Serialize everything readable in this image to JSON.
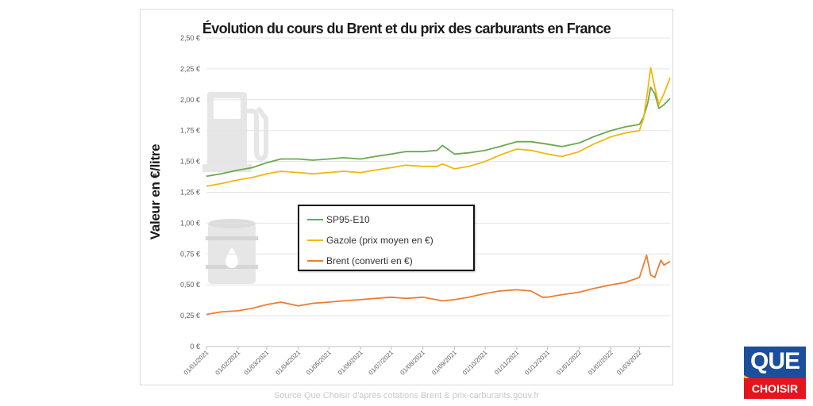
{
  "chart_data": {
    "type": "line",
    "title": "Évolution du cours du Brent et du prix des carburants en France",
    "ylabel": "Valeur en €/litre",
    "xlabel": "",
    "ylim": [
      0,
      2.5
    ],
    "yticks": [
      0,
      0.25,
      0.5,
      0.75,
      1.0,
      1.25,
      1.5,
      1.75,
      2.0,
      2.25,
      2.5
    ],
    "ytick_labels": [
      "0 €",
      "0,25 €",
      "0,50 €",
      "0,75 €",
      "1,00 €",
      "1,25 €",
      "1,50 €",
      "1,75 €",
      "2,00 €",
      "2,25 €",
      "2,50 €"
    ],
    "xlim": [
      "2021-01-01",
      "2022-03-31"
    ],
    "xtick_labels": [
      "01/01/2021",
      "01/02/2021",
      "01/03/2021",
      "01/04/2021",
      "01/05/2021",
      "01/06/2021",
      "01/07/2021",
      "01/08/2021",
      "01/09/2021",
      "01/10/2021",
      "01/11/2021",
      "01/12/2021",
      "01/01/2022",
      "01/02/2022",
      "01/03/2022"
    ],
    "grid": "horizontal",
    "legend": "center-left",
    "series": [
      {
        "name": "SP95-E10",
        "color": "#6aa84f",
        "x": [
          "2021-01-01",
          "2021-01-15",
          "2021-02-01",
          "2021-02-15",
          "2021-03-01",
          "2021-03-15",
          "2021-04-01",
          "2021-04-15",
          "2021-05-01",
          "2021-05-15",
          "2021-06-01",
          "2021-06-15",
          "2021-07-01",
          "2021-07-15",
          "2021-08-01",
          "2021-08-15",
          "2021-08-20",
          "2021-09-01",
          "2021-09-15",
          "2021-10-01",
          "2021-10-15",
          "2021-11-01",
          "2021-11-15",
          "2021-12-01",
          "2021-12-15",
          "2022-01-01",
          "2022-01-15",
          "2022-02-01",
          "2022-02-15",
          "2022-03-01",
          "2022-03-05",
          "2022-03-09",
          "2022-03-12",
          "2022-03-16",
          "2022-03-20",
          "2022-03-25",
          "2022-03-31"
        ],
        "values": [
          1.38,
          1.4,
          1.43,
          1.45,
          1.49,
          1.52,
          1.52,
          1.51,
          1.52,
          1.53,
          1.52,
          1.54,
          1.56,
          1.58,
          1.58,
          1.59,
          1.63,
          1.56,
          1.57,
          1.59,
          1.62,
          1.66,
          1.66,
          1.64,
          1.62,
          1.65,
          1.7,
          1.75,
          1.78,
          1.8,
          1.86,
          1.97,
          2.1,
          2.05,
          1.93,
          1.96,
          2.01
        ]
      },
      {
        "name": "Gazole (prix moyen en €)",
        "color": "#f2b70e",
        "x": [
          "2021-01-01",
          "2021-01-15",
          "2021-02-01",
          "2021-02-15",
          "2021-03-01",
          "2021-03-15",
          "2021-04-01",
          "2021-04-15",
          "2021-05-01",
          "2021-05-15",
          "2021-06-01",
          "2021-06-15",
          "2021-07-01",
          "2021-07-15",
          "2021-08-01",
          "2021-08-15",
          "2021-08-20",
          "2021-09-01",
          "2021-09-15",
          "2021-10-01",
          "2021-10-15",
          "2021-11-01",
          "2021-11-15",
          "2021-12-01",
          "2021-12-15",
          "2022-01-01",
          "2022-01-15",
          "2022-02-01",
          "2022-02-15",
          "2022-03-01",
          "2022-03-05",
          "2022-03-09",
          "2022-03-12",
          "2022-03-16",
          "2022-03-20",
          "2022-03-25",
          "2022-03-31"
        ],
        "values": [
          1.3,
          1.32,
          1.35,
          1.37,
          1.4,
          1.42,
          1.41,
          1.4,
          1.41,
          1.42,
          1.41,
          1.43,
          1.45,
          1.47,
          1.46,
          1.46,
          1.48,
          1.44,
          1.46,
          1.5,
          1.55,
          1.6,
          1.59,
          1.56,
          1.54,
          1.58,
          1.64,
          1.7,
          1.73,
          1.75,
          1.85,
          2.07,
          2.26,
          2.1,
          1.96,
          2.05,
          2.18
        ]
      },
      {
        "name": "Brent (converti en €)",
        "color": "#ed7d31",
        "x": [
          "2021-01-01",
          "2021-01-15",
          "2021-02-01",
          "2021-02-15",
          "2021-03-01",
          "2021-03-15",
          "2021-04-01",
          "2021-04-15",
          "2021-05-01",
          "2021-05-15",
          "2021-06-01",
          "2021-06-15",
          "2021-07-01",
          "2021-07-15",
          "2021-08-01",
          "2021-08-20",
          "2021-09-01",
          "2021-09-15",
          "2021-10-01",
          "2021-10-15",
          "2021-11-01",
          "2021-11-15",
          "2021-11-26",
          "2021-12-01",
          "2021-12-15",
          "2022-01-01",
          "2022-01-15",
          "2022-02-01",
          "2022-02-15",
          "2022-03-01",
          "2022-03-08",
          "2022-03-12",
          "2022-03-16",
          "2022-03-22",
          "2022-03-25",
          "2022-03-31"
        ],
        "values": [
          0.26,
          0.28,
          0.29,
          0.31,
          0.34,
          0.36,
          0.33,
          0.35,
          0.36,
          0.37,
          0.38,
          0.39,
          0.4,
          0.39,
          0.4,
          0.37,
          0.38,
          0.4,
          0.43,
          0.45,
          0.46,
          0.45,
          0.4,
          0.4,
          0.42,
          0.44,
          0.47,
          0.5,
          0.52,
          0.56,
          0.74,
          0.58,
          0.56,
          0.7,
          0.66,
          0.69
        ]
      }
    ]
  },
  "source": "Source Que Choisir d'après cotations Brent & prix-carburants.gouv.fr",
  "logo": {
    "line1": "QUE",
    "line2": "CHOISIR"
  },
  "icons": [
    "fuel-pump-icon",
    "oil-barrel-icon"
  ]
}
